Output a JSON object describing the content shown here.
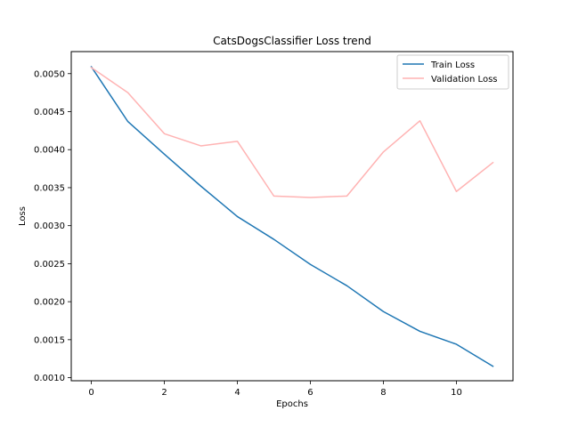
{
  "chart_data": {
    "type": "line",
    "title": "CatsDogsClassifier Loss trend",
    "xlabel": "Epochs",
    "ylabel": "Loss",
    "xlim": [
      -0.55,
      11.55
    ],
    "ylim": [
      0.00096,
      0.00529
    ],
    "x_ticks": [
      0,
      2,
      4,
      6,
      8,
      10
    ],
    "y_ticks": [
      0.001,
      0.0015,
      0.002,
      0.0025,
      0.003,
      0.0035,
      0.004,
      0.0045,
      0.005
    ],
    "y_tick_labels": [
      "0.0010",
      "0.0015",
      "0.0020",
      "0.0025",
      "0.0030",
      "0.0035",
      "0.0040",
      "0.0045",
      "0.0050"
    ],
    "grid": false,
    "legend_position": "top-right",
    "x": [
      0,
      1,
      2,
      3,
      4,
      5,
      6,
      7,
      8,
      9,
      10,
      11
    ],
    "series": [
      {
        "name": "Train Loss",
        "color": "#1f77b4",
        "values": [
          0.00509,
          0.00437,
          0.00394,
          0.00352,
          0.00312,
          0.00282,
          0.00249,
          0.00221,
          0.00187,
          0.00161,
          0.00144,
          0.00115
        ]
      },
      {
        "name": "Validation Loss",
        "color": "#ffb3b3",
        "values": [
          0.00508,
          0.00475,
          0.00421,
          0.00405,
          0.00411,
          0.00339,
          0.00337,
          0.00339,
          0.00397,
          0.00438,
          0.00345,
          0.00383
        ]
      }
    ]
  }
}
